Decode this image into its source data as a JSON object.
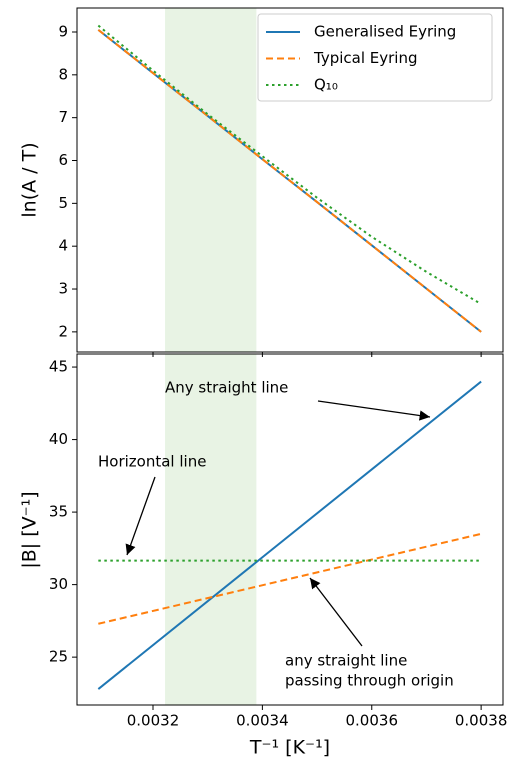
{
  "chart_data": [
    {
      "type": "line",
      "ylabel": "ln(A / T)",
      "x": [
        0.0031,
        0.0032,
        0.0033,
        0.0034,
        0.0035,
        0.0036,
        0.0037,
        0.0038
      ],
      "series": [
        {
          "name": "Generalised Eyring",
          "color": "#1f77b4",
          "linestyle": "solid",
          "values": [
            9.05,
            8.04,
            7.04,
            6.03,
            5.03,
            4.02,
            3.01,
            2.0
          ]
        },
        {
          "name": "Typical Eyring",
          "color": "#ff7f0e",
          "linestyle": "dashed",
          "values": [
            9.05,
            8.04,
            7.04,
            6.03,
            5.03,
            4.02,
            3.01,
            2.0
          ]
        },
        {
          "name": "Q₁₀",
          "color": "#2ca02c",
          "linestyle": "dotted",
          "values": [
            9.15,
            8.1,
            7.08,
            6.1,
            5.13,
            4.22,
            3.4,
            2.65
          ]
        }
      ],
      "span": [
        0.003222,
        0.003389
      ],
      "span_color": "#e8f3e4",
      "xlim": [
        0.003061,
        0.00384
      ],
      "ylim": [
        1.53,
        9.56
      ],
      "yticks": [
        2,
        3,
        4,
        5,
        6,
        7,
        8,
        9
      ],
      "legend": "upper right"
    },
    {
      "type": "line",
      "ylabel": "|B| [V⁻¹]",
      "xlabel": "T⁻¹ [K⁻¹]",
      "x": [
        0.0031,
        0.0038
      ],
      "series": [
        {
          "color": "#1f77b4",
          "linestyle": "solid",
          "values": [
            22.8,
            44.0
          ]
        },
        {
          "color": "#ff7f0e",
          "linestyle": "dashed",
          "values": [
            27.3,
            33.5
          ]
        },
        {
          "color": "#2ca02c",
          "linestyle": "dotted",
          "values": [
            31.65,
            31.65
          ]
        }
      ],
      "span": [
        0.003222,
        0.003389
      ],
      "span_color": "#e8f3e4",
      "xlim": [
        0.003061,
        0.00384
      ],
      "ylim": [
        21.7,
        45.9
      ],
      "xticks": [
        0.0032,
        0.0034,
        0.0036,
        0.0038
      ],
      "yticks": [
        25,
        30,
        35,
        40,
        45
      ],
      "annotations": [
        "Any straight line",
        "Horizontal line",
        "any straight line",
        "passing through origin"
      ]
    }
  ]
}
